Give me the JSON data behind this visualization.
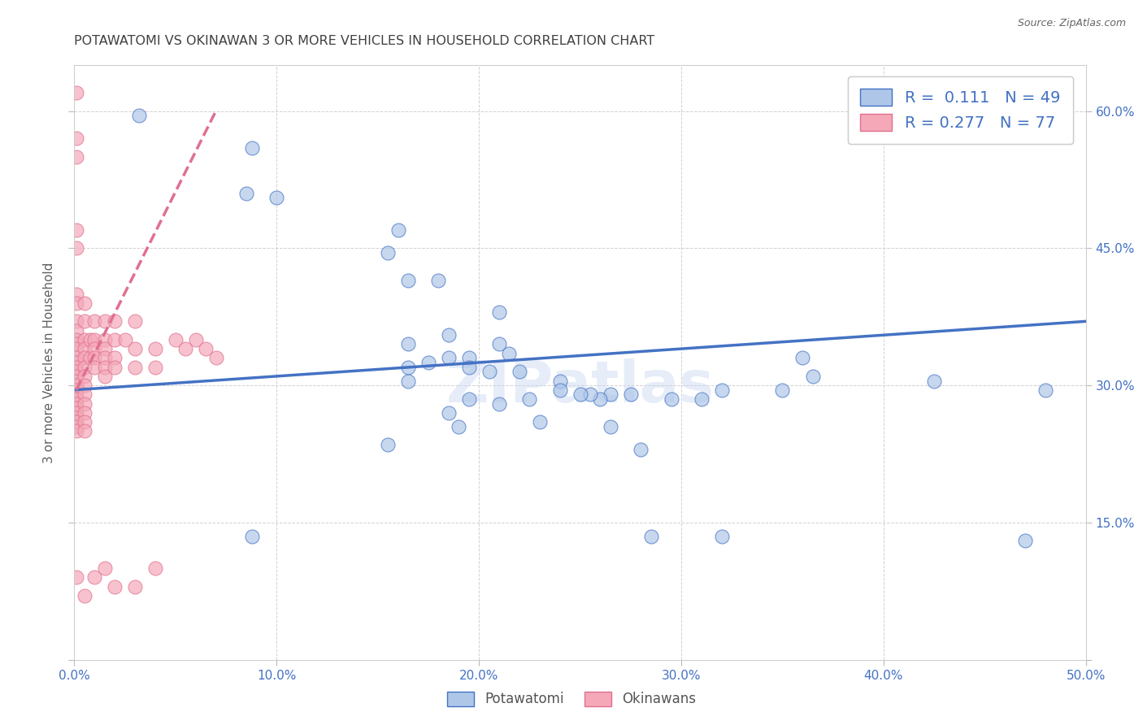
{
  "title": "POTAWATOMI VS OKINAWAN 3 OR MORE VEHICLES IN HOUSEHOLD CORRELATION CHART",
  "source": "Source: ZipAtlas.com",
  "ylabel": "3 or more Vehicles in Household",
  "xlim": [
    0.0,
    0.5
  ],
  "ylim": [
    0.0,
    0.65
  ],
  "xtick_vals": [
    0.0,
    0.1,
    0.2,
    0.3,
    0.4,
    0.5
  ],
  "ytick_vals": [
    0.0,
    0.15,
    0.3,
    0.45,
    0.6
  ],
  "xtick_labels": [
    "0.0%",
    "10.0%",
    "20.0%",
    "30.0%",
    "40.0%",
    "50.0%"
  ],
  "ytick_labels": [
    "",
    "15.0%",
    "30.0%",
    "45.0%",
    "60.0%"
  ],
  "watermark": "ZIPatlas",
  "legend_r1": "R =  0.111",
  "legend_n1": "N = 49",
  "legend_r2": "R = 0.277",
  "legend_n2": "N = 77",
  "potawatomi_face_color": "#aec6e8",
  "okinawan_face_color": "#f4a8b8",
  "line_potawatomi_color": "#4472c4",
  "line_okinawan_color": "#e07090",
  "background_color": "#ffffff",
  "grid_color": "#cccccc",
  "title_color": "#404040",
  "axis_tick_color": "#4472c4",
  "ylabel_color": "#606060",
  "potawatomi_x": [
    0.032,
    0.088,
    0.085,
    0.1,
    0.155,
    0.165,
    0.18,
    0.21,
    0.185,
    0.165,
    0.21,
    0.215,
    0.195,
    0.185,
    0.175,
    0.165,
    0.195,
    0.205,
    0.22,
    0.165,
    0.24,
    0.24,
    0.265,
    0.26,
    0.275,
    0.31,
    0.295,
    0.195,
    0.225,
    0.21,
    0.185,
    0.23,
    0.19,
    0.32,
    0.35,
    0.365,
    0.36,
    0.255,
    0.25,
    0.425,
    0.48,
    0.47,
    0.155,
    0.265,
    0.28,
    0.285,
    0.32,
    0.16,
    0.088
  ],
  "potawatomi_y": [
    0.595,
    0.56,
    0.51,
    0.505,
    0.445,
    0.415,
    0.415,
    0.38,
    0.355,
    0.345,
    0.345,
    0.335,
    0.33,
    0.33,
    0.325,
    0.32,
    0.32,
    0.315,
    0.315,
    0.305,
    0.305,
    0.295,
    0.29,
    0.285,
    0.29,
    0.285,
    0.285,
    0.285,
    0.285,
    0.28,
    0.27,
    0.26,
    0.255,
    0.295,
    0.295,
    0.31,
    0.33,
    0.29,
    0.29,
    0.305,
    0.295,
    0.13,
    0.235,
    0.255,
    0.23,
    0.135,
    0.135,
    0.47,
    0.135
  ],
  "okinawan_x": [
    0.001,
    0.001,
    0.001,
    0.001,
    0.001,
    0.001,
    0.001,
    0.001,
    0.001,
    0.001,
    0.001,
    0.001,
    0.001,
    0.001,
    0.001,
    0.001,
    0.001,
    0.001,
    0.001,
    0.001,
    0.001,
    0.001,
    0.001,
    0.001,
    0.001,
    0.001,
    0.001,
    0.001,
    0.001,
    0.001,
    0.005,
    0.005,
    0.005,
    0.005,
    0.005,
    0.005,
    0.005,
    0.005,
    0.005,
    0.005,
    0.005,
    0.005,
    0.005,
    0.005,
    0.008,
    0.008,
    0.01,
    0.01,
    0.01,
    0.01,
    0.01,
    0.01,
    0.015,
    0.015,
    0.015,
    0.015,
    0.015,
    0.015,
    0.015,
    0.02,
    0.02,
    0.02,
    0.02,
    0.02,
    0.025,
    0.03,
    0.03,
    0.03,
    0.03,
    0.04,
    0.04,
    0.04,
    0.05,
    0.055,
    0.06,
    0.065,
    0.07
  ],
  "okinawan_y": [
    0.62,
    0.57,
    0.55,
    0.47,
    0.45,
    0.4,
    0.39,
    0.37,
    0.36,
    0.35,
    0.345,
    0.34,
    0.33,
    0.325,
    0.32,
    0.315,
    0.31,
    0.305,
    0.3,
    0.295,
    0.29,
    0.285,
    0.28,
    0.275,
    0.27,
    0.265,
    0.26,
    0.255,
    0.25,
    0.09,
    0.39,
    0.37,
    0.35,
    0.34,
    0.33,
    0.32,
    0.31,
    0.3,
    0.29,
    0.28,
    0.27,
    0.26,
    0.25,
    0.07,
    0.35,
    0.33,
    0.37,
    0.35,
    0.34,
    0.33,
    0.32,
    0.09,
    0.37,
    0.35,
    0.34,
    0.33,
    0.32,
    0.31,
    0.1,
    0.37,
    0.35,
    0.33,
    0.32,
    0.08,
    0.35,
    0.37,
    0.34,
    0.32,
    0.08,
    0.34,
    0.32,
    0.1,
    0.35,
    0.34,
    0.35,
    0.34,
    0.33
  ],
  "okinawan_regline_x": [
    0.001,
    0.07
  ],
  "potawatomi_regline_x": [
    0.0,
    0.5
  ],
  "potawatomi_regline_y": [
    0.295,
    0.37
  ],
  "okinawan_regline_y": [
    0.295,
    0.6
  ]
}
